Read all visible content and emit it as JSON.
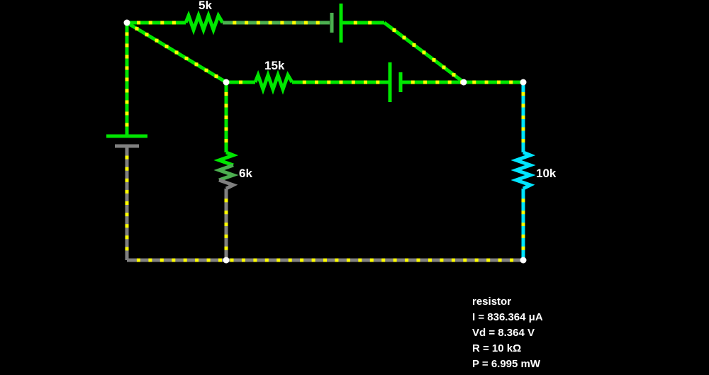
{
  "canvas": {
    "background": "#000000"
  },
  "colors": {
    "wire_hot": "#00e600",
    "wire_mid": "#4caf50",
    "wire_ground": "#808080",
    "wire_selected": "#00e5ff",
    "current_dot": "#ffff00",
    "node": "#ffffff"
  },
  "components": {
    "r_top": {
      "label": "5k"
    },
    "r_mid": {
      "label": "15k"
    },
    "r_left": {
      "label": "6k"
    },
    "r_right": {
      "label": "10k"
    }
  },
  "info_panel": {
    "lines": [
      "resistor",
      "I = 836.364 μA",
      "Vd = 8.364 V",
      "R = 10 kΩ",
      "P = 6.995 mW"
    ]
  }
}
